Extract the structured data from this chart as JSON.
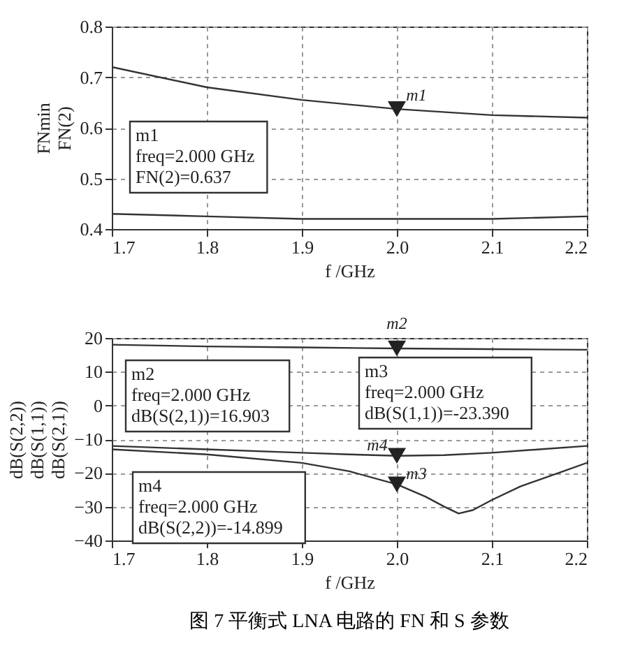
{
  "chart_data": [
    {
      "type": "line",
      "xlabel": "f /GHz",
      "ylabel": "FNmin\nFN(2)",
      "xlim": [
        1.7,
        2.2
      ],
      "xticks": [
        {
          "value": 1.7,
          "label": "1.7"
        },
        {
          "value": 1.8,
          "label": "1.8"
        },
        {
          "value": 1.9,
          "label": "1.9"
        },
        {
          "value": 2.0,
          "label": "2.0"
        },
        {
          "value": 2.1,
          "label": "2.1"
        },
        {
          "value": 2.2,
          "label": "2.2"
        }
      ],
      "ylim": [
        0.4,
        0.8
      ],
      "yticks": [
        0.4,
        0.5,
        0.6,
        0.7,
        0.8
      ],
      "grid": true,
      "series": [
        {
          "color": "#333333",
          "x": [
            1.7,
            1.8,
            1.9,
            2.0,
            2.1,
            2.2
          ],
          "values": [
            0.72,
            0.68,
            0.655,
            0.637,
            0.625,
            0.62
          ]
        },
        {
          "color": "#333333",
          "x": [
            1.7,
            1.8,
            1.9,
            2.0,
            2.1,
            2.2
          ],
          "values": [
            0.43,
            0.425,
            0.42,
            0.42,
            0.42,
            0.425
          ]
        },
        {
          "type": "scatter",
          "marker": "triangle",
          "name": "m1",
          "color": "#222222",
          "x": [
            2.0
          ],
          "values": [
            0.637
          ]
        }
      ],
      "annotations": [
        "m1\nfreq=2.000 GHz\nFN(2)=0.637"
      ]
    },
    {
      "type": "line",
      "title": "图 7   平衡式 LNA 电路的 FN 和 S 参数",
      "xlabel": "f /GHz",
      "ylabel": "dB(S(2,2))\ndB(S(1,1))\ndB(S(2,1))",
      "xlim": [
        1.7,
        2.2
      ],
      "xticks": [
        {
          "value": 1.7,
          "label": "1.7"
        },
        {
          "value": 1.8,
          "label": "1.8"
        },
        {
          "value": 1.9,
          "label": "1.9"
        },
        {
          "value": 2.0,
          "label": "2.0"
        },
        {
          "value": 2.1,
          "label": "2.1"
        },
        {
          "value": 2.2,
          "label": "2.2"
        }
      ],
      "ylim": [
        -40,
        20
      ],
      "yticks": [
        -40,
        -30,
        -20,
        -10,
        0,
        10,
        20
      ],
      "grid": true,
      "series": [
        {
          "color": "#333333",
          "x": [
            1.7,
            1.8,
            1.9,
            2.0,
            2.1,
            2.2
          ],
          "values": [
            18,
            17.5,
            17.2,
            16.903,
            16.7,
            16.5
          ]
        },
        {
          "color": "#333333",
          "x": [
            1.7,
            1.8,
            1.9,
            1.95,
            2.0,
            2.05,
            2.1,
            2.15,
            2.2
          ],
          "values": [
            -12,
            -13,
            -14,
            -14.5,
            -14.899,
            -14.7,
            -14,
            -13,
            -12
          ]
        },
        {
          "color": "#333333",
          "x": [
            1.7,
            1.8,
            1.9,
            1.95,
            2.0,
            2.03,
            2.05,
            2.065,
            2.08,
            2.1,
            2.13,
            2.17,
            2.2
          ],
          "values": [
            -13,
            -14.5,
            -17,
            -19.5,
            -23.39,
            -27,
            -30,
            -32,
            -31,
            -28,
            -24,
            -20,
            -17
          ]
        },
        {
          "type": "scatter",
          "marker": "triangle",
          "name": "m2",
          "color": "#222222",
          "x": [
            2.0
          ],
          "values": [
            16.903
          ]
        },
        {
          "type": "scatter",
          "marker": "triangle",
          "name": "m3",
          "color": "#222222",
          "x": [
            2.0
          ],
          "values": [
            -23.39
          ]
        },
        {
          "type": "scatter",
          "marker": "triangle",
          "name": "m4",
          "color": "#222222",
          "x": [
            2.0
          ],
          "values": [
            -14.899
          ]
        }
      ],
      "annotations": [
        "m2\nfreq=2.000 GHz\ndB(S(2,1))=16.903",
        "m3\nfreq=2.000 GHz\ndB(S(1,1))=-23.390",
        "m4\nfreq=2.000 GHz\ndB(S(2,2))=-14.899"
      ]
    }
  ]
}
